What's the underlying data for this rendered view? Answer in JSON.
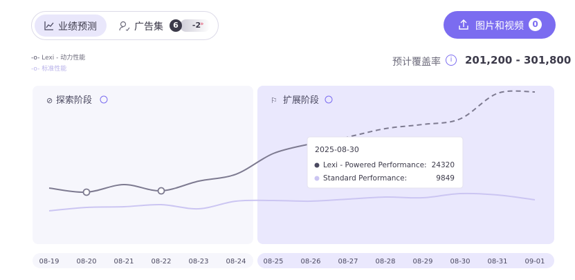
{
  "tabs": {
    "forecast": "业绩预测",
    "adsets": "广告集",
    "adsets_count": "6",
    "adsets_delta": "-2"
  },
  "upload_button": {
    "label": "图片和视频",
    "count": "0"
  },
  "coverage": {
    "label": "预计覆盖率",
    "value": "201,200 - 301,800"
  },
  "chart_data": {
    "type": "line",
    "phases": [
      "探索阶段",
      "扩展阶段"
    ],
    "categories": [
      "08-19",
      "08-20",
      "08-21",
      "08-22",
      "08-23",
      "08-24",
      "08-25",
      "08-26",
      "08-27",
      "08-28",
      "08-29",
      "08-30",
      "08-31",
      "09-01"
    ],
    "series": [
      {
        "name": "Lexi - 动力性能",
        "color": "#7d7a90",
        "values": [
          10920,
          10120,
          11590,
          10380,
          12260,
          13600,
          17620,
          19500,
          null,
          null,
          null,
          null,
          null,
          null
        ]
      },
      {
        "name": "标准性能",
        "color": "#cbc5f2",
        "values": [
          6500,
          7170,
          7300,
          7700,
          6900,
          8370,
          8510,
          8370,
          8780,
          9180,
          9040,
          9849,
          9580,
          8640
        ]
      },
      {
        "color": "#7d7a90",
        "dashed": true,
        "values": [
          null,
          null,
          null,
          null,
          null,
          null,
          null,
          19500,
          20840,
          22440,
          23250,
          24320,
          29280,
          29550
        ]
      }
    ],
    "tooltip": {
      "title": "2025-08-30",
      "labels": [
        "Lexi - Powered Performance:",
        "Standard Performance:"
      ]
    }
  }
}
